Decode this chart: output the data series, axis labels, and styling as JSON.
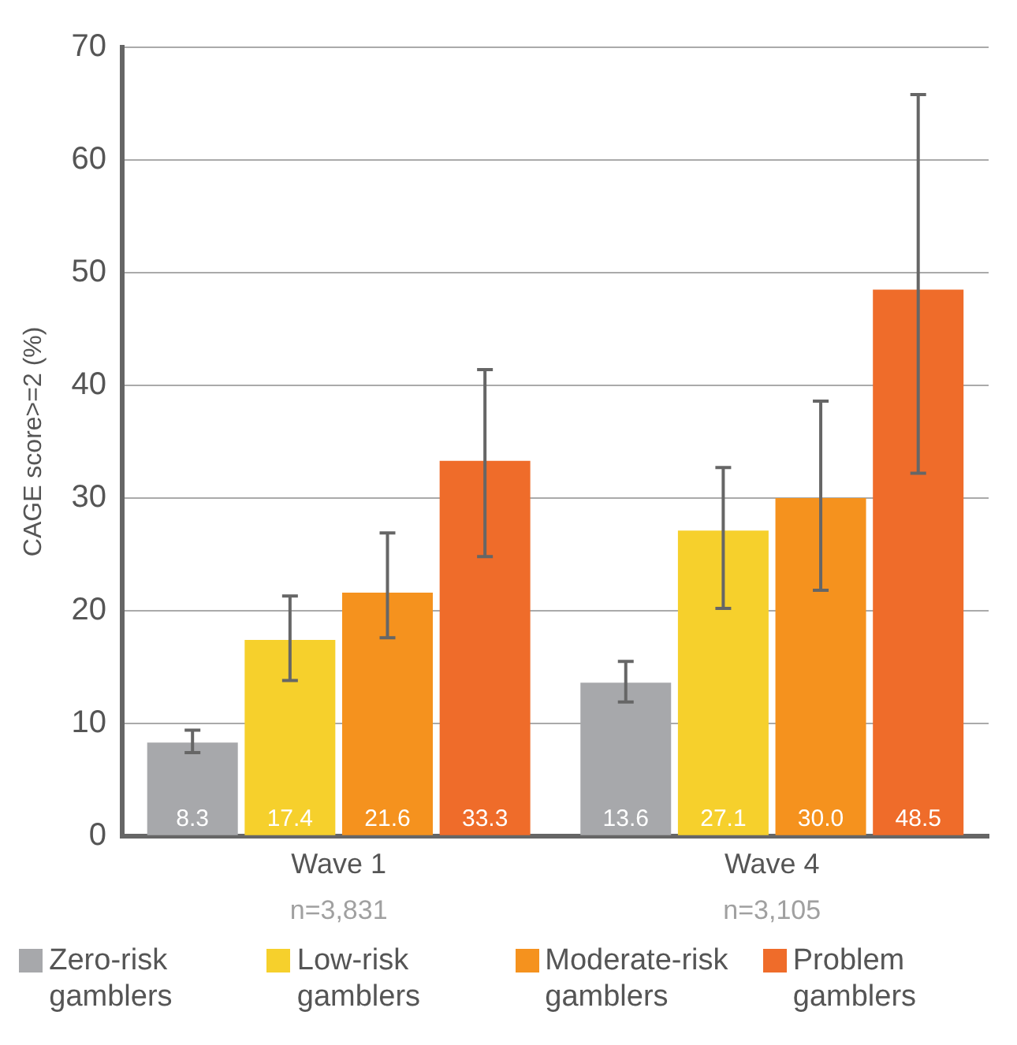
{
  "chart_data": {
    "type": "bar",
    "ylabel": "CAGE score>=2 (%)",
    "categories": [
      "Wave 1",
      "Wave 4"
    ],
    "annotations": [
      "n=3,831",
      "n=3,105"
    ],
    "series": [
      {
        "name": "Zero-risk gamblers",
        "color": "#a7a8ab",
        "values": [
          8.3,
          13.6
        ],
        "value_labels": [
          "8.3",
          "13.6"
        ],
        "errors": [
          [
            7.4,
            9.4
          ],
          [
            11.9,
            15.5
          ]
        ]
      },
      {
        "name": "Low-risk gamblers",
        "color": "#f6d02c",
        "values": [
          17.4,
          27.1
        ],
        "value_labels": [
          "17.4",
          "27.1"
        ],
        "errors": [
          [
            13.8,
            21.3
          ],
          [
            20.2,
            32.7
          ]
        ]
      },
      {
        "name": "Moderate-risk gamblers",
        "color": "#f5921e",
        "values": [
          21.6,
          30.0
        ],
        "value_labels": [
          "21.6",
          "30.0"
        ],
        "errors": [
          [
            17.6,
            26.9
          ],
          [
            21.8,
            38.6
          ]
        ]
      },
      {
        "name": "Problem gamblers",
        "color": "#ef6c2a",
        "values": [
          33.3,
          48.5
        ],
        "value_labels": [
          "33.3",
          "48.5"
        ],
        "errors": [
          [
            24.8,
            41.4
          ],
          [
            32.2,
            65.8
          ]
        ]
      }
    ],
    "ylim": [
      0,
      70
    ],
    "yticks": [
      0,
      10,
      20,
      30,
      40,
      50,
      60,
      70
    ],
    "grid": "y",
    "legend": "bottom"
  }
}
